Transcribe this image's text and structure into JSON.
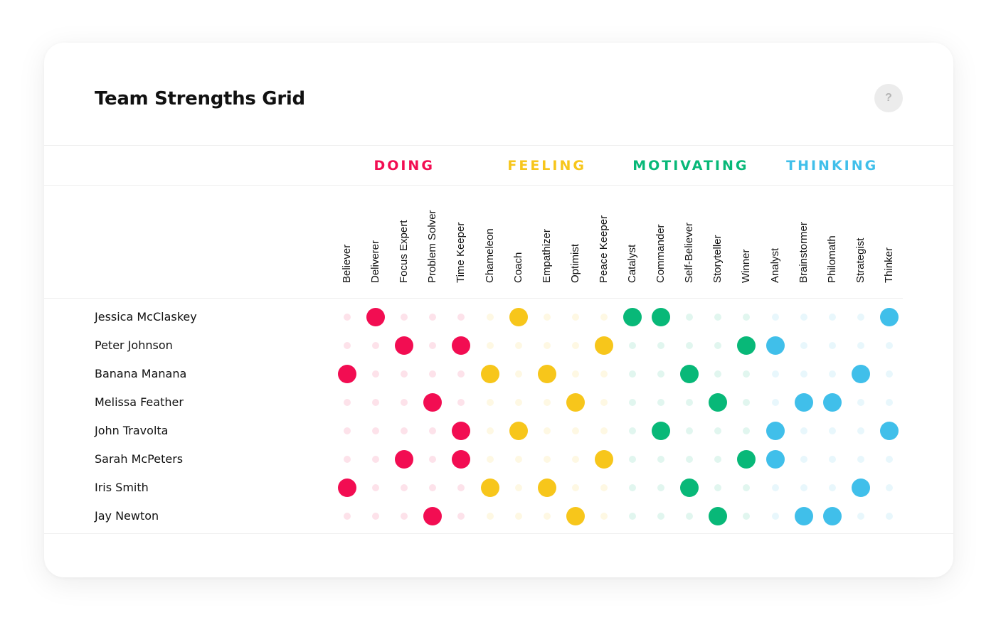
{
  "title": "Team Strengths Grid",
  "help_label": "?",
  "colors": {
    "doing": "#f20d52",
    "feeling": "#f7c61b",
    "motivating": "#08b878",
    "thinking": "#40bfea"
  },
  "icons": {
    "help": "question-mark-icon"
  },
  "groups": [
    {
      "key": "doing",
      "label": "DOING",
      "strengths": [
        "Believer",
        "Deliverer",
        "Focus Expert",
        "Problem Solver",
        "Time Keeper"
      ]
    },
    {
      "key": "feeling",
      "label": "FEELING",
      "strengths": [
        "Chameleon",
        "Coach",
        "Empathizer",
        "Optimist",
        "Peace Keeper"
      ]
    },
    {
      "key": "motivating",
      "label": "MOTIVATING",
      "strengths": [
        "Catalyst",
        "Commander",
        "Self-Believer",
        "Storyteller",
        "Winner"
      ]
    },
    {
      "key": "thinking",
      "label": "THINKING",
      "strengths": [
        "Analyst",
        "Brainstormer",
        "Philomath",
        "Strategist",
        "Thinker"
      ]
    }
  ],
  "rows": [
    {
      "name": "Jessica McClaskey",
      "strengths": [
        "Deliverer",
        "Coach",
        "Catalyst",
        "Commander",
        "Thinker"
      ]
    },
    {
      "name": "Peter Johnson",
      "strengths": [
        "Focus Expert",
        "Time Keeper",
        "Peace Keeper",
        "Winner",
        "Analyst"
      ]
    },
    {
      "name": "Banana Manana",
      "strengths": [
        "Believer",
        "Chameleon",
        "Empathizer",
        "Self-Believer",
        "Strategist"
      ]
    },
    {
      "name": "Melissa Feather",
      "strengths": [
        "Problem Solver",
        "Optimist",
        "Storyteller",
        "Brainstormer",
        "Philomath"
      ]
    },
    {
      "name": "John Travolta",
      "strengths": [
        "Time Keeper",
        "Coach",
        "Commander",
        "Analyst",
        "Thinker"
      ]
    },
    {
      "name": "Sarah McPeters",
      "strengths": [
        "Focus Expert",
        "Time Keeper",
        "Peace Keeper",
        "Winner",
        "Analyst"
      ]
    },
    {
      "name": "Iris Smith",
      "strengths": [
        "Believer",
        "Chameleon",
        "Empathizer",
        "Self-Believer",
        "Strategist"
      ]
    },
    {
      "name": "Jay Newton",
      "strengths": [
        "Problem Solver",
        "Optimist",
        "Storyteller",
        "Brainstormer",
        "Philomath"
      ]
    }
  ]
}
